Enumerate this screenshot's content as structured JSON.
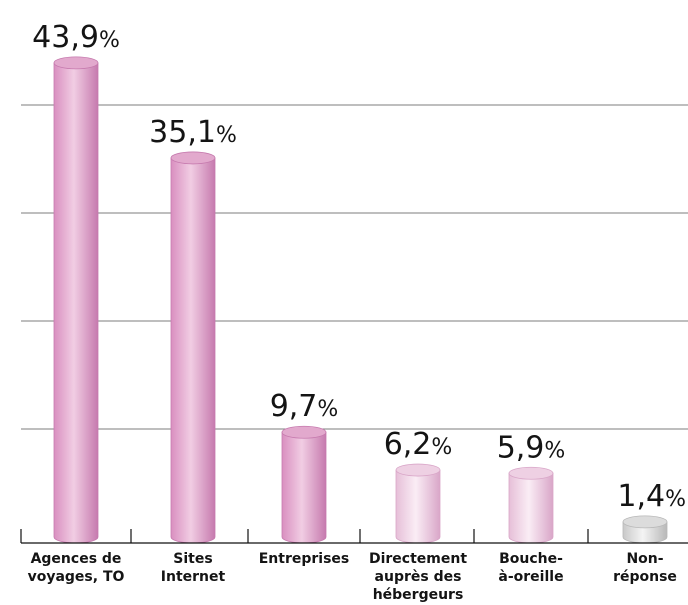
{
  "chart_data": {
    "type": "bar",
    "categories": [
      [
        "Agences de",
        "voyages, TO"
      ],
      [
        "Sites",
        "Internet"
      ],
      [
        "Entreprises"
      ],
      [
        "Directement",
        "auprès des",
        "hébergeurs"
      ],
      [
        "Bouche-",
        "à-oreille"
      ],
      [
        "Non-",
        "réponse"
      ]
    ],
    "values": [
      43.9,
      35.1,
      9.7,
      6.2,
      5.9,
      1.4
    ],
    "value_labels": [
      "43,9",
      "35,1",
      "9,7",
      "6,2",
      "5,9",
      "1,4"
    ],
    "value_suffix": "%",
    "ylim": [
      0,
      50
    ],
    "grid": true,
    "gridlines": [
      10,
      20,
      30,
      40
    ],
    "colors": {
      "pink": [
        "#d98fc0",
        "#f1cde3",
        "#c67aae",
        "#e2a9cd"
      ],
      "light_pink": [
        "#e6bfd8",
        "#faedf5",
        "#d9a6c8",
        "#eed0e3"
      ],
      "gray": [
        "#c9c9c9",
        "#f4f4f4",
        "#b8b8b8",
        "#dcdcdc"
      ]
    },
    "bar_color_keys": [
      "pink",
      "pink",
      "pink",
      "light_pink",
      "light_pink",
      "gray"
    ]
  }
}
